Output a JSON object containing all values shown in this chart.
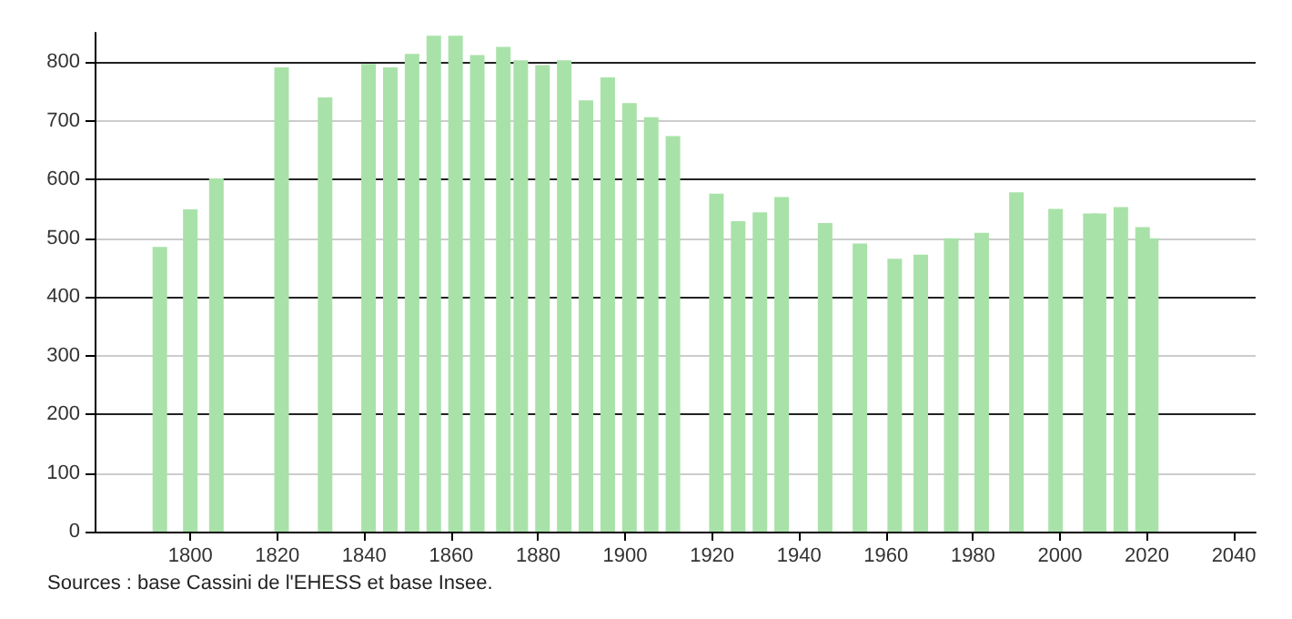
{
  "chart_data": {
    "type": "bar",
    "x": [
      1793,
      1800,
      1806,
      1821,
      1831,
      1841,
      1846,
      1851,
      1856,
      1861,
      1866,
      1872,
      1876,
      1881,
      1886,
      1891,
      1896,
      1901,
      1906,
      1911,
      1921,
      1926,
      1931,
      1936,
      1946,
      1954,
      1962,
      1968,
      1975,
      1982,
      1990,
      1999,
      2007,
      2009,
      2014,
      2019,
      2021
    ],
    "values": [
      485,
      549,
      602,
      791,
      740,
      797,
      791,
      814,
      845,
      845,
      812,
      826,
      803,
      795,
      803,
      735,
      774,
      730,
      706,
      674,
      576,
      529,
      544,
      570,
      526,
      491,
      465,
      472,
      500,
      509,
      578,
      550,
      542,
      542,
      553,
      519,
      500
    ],
    "color": "#a8e2a8",
    "xlim": [
      1778,
      2045
    ],
    "xticks": [
      1800,
      1820,
      1840,
      1860,
      1880,
      1900,
      1920,
      1940,
      1960,
      1980,
      2000,
      2020,
      2040
    ],
    "ylim": [
      0,
      850
    ],
    "yticks": [
      0,
      100,
      200,
      300,
      400,
      500,
      600,
      700,
      800
    ],
    "grid": "y",
    "annotations": [
      "Sources : base Cassini de l'EHESS et base Insee."
    ]
  }
}
